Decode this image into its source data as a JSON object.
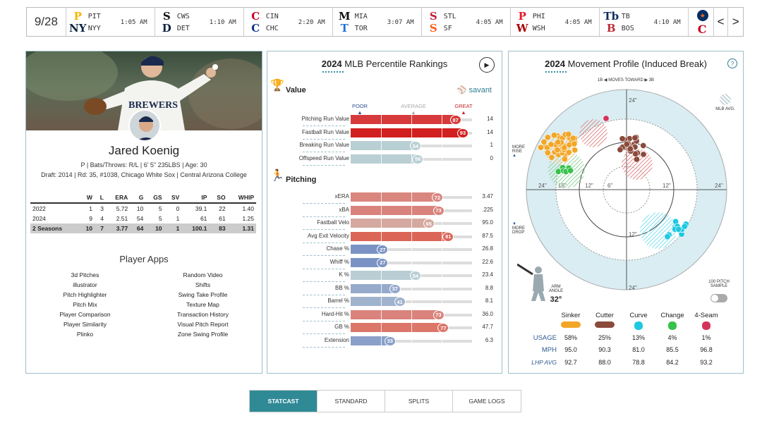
{
  "scorebar": {
    "date": "9/28",
    "games": [
      {
        "away": "PIT",
        "home": "NYY",
        "time": "1:05 AM",
        "away_logo": "P",
        "home_logo": "NY",
        "away_color": "#f5b400",
        "home_color": "#0c2340"
      },
      {
        "away": "CWS",
        "home": "DET",
        "time": "1:10 AM",
        "away_logo": "S",
        "home_logo": "D",
        "away_color": "#111111",
        "home_color": "#0c2340"
      },
      {
        "away": "CIN",
        "home": "CHC",
        "time": "2:20 AM",
        "away_logo": "C",
        "home_logo": "C",
        "away_color": "#c6011f",
        "home_color": "#0e3386"
      },
      {
        "away": "MIA",
        "home": "TOR",
        "time": "3:07 AM",
        "away_logo": "M",
        "home_logo": "T",
        "away_color": "#111111",
        "home_color": "#1d6fd8"
      },
      {
        "away": "STL",
        "home": "SF",
        "time": "4:05 AM",
        "away_logo": "S",
        "home_logo": "S",
        "away_color": "#c41e3a",
        "home_color": "#fd5a1e"
      },
      {
        "away": "PHI",
        "home": "WSH",
        "time": "4:05 AM",
        "away_logo": "P",
        "home_logo": "W",
        "away_color": "#e81828",
        "home_color": "#ab0003"
      },
      {
        "away": "TB",
        "home": "BOS",
        "time": "4:10 AM",
        "away_logo": "Tb",
        "home_logo": "B",
        "away_color": "#092c5c",
        "home_color": "#bd3039"
      }
    ],
    "last_logo": "C",
    "prev_label": "<",
    "next_label": ">"
  },
  "player": {
    "name": "Jared Koenig",
    "info1": "P | Bats/Throws: R/L | 6' 5\" 235LBS | Age: 30",
    "info2": "Draft: 2014 | Rd: 35, #1038, Chicago White Sox | Central Arizona College",
    "jersey": "BREWERS",
    "stats_headers": [
      "",
      "W",
      "L",
      "ERA",
      "G",
      "GS",
      "SV",
      "IP",
      "SO",
      "WHIP"
    ],
    "stats_rows": [
      [
        "2022",
        "1",
        "3",
        "5.72",
        "10",
        "5",
        "0",
        "39.1",
        "22",
        "1.40"
      ],
      [
        "2024",
        "9",
        "4",
        "2.51",
        "54",
        "5",
        "1",
        "61",
        "61",
        "1.25"
      ],
      [
        "2 Seasons",
        "10",
        "7",
        "3.77",
        "64",
        "10",
        "1",
        "100.1",
        "83",
        "1.31"
      ]
    ],
    "apps_title": "Player Apps",
    "apps_left": [
      "3d Pitches",
      "illustrator",
      "Pitch Highlighter",
      "Pitch Mix",
      "Player Comparison",
      "Player Similarity",
      "Plinko"
    ],
    "apps_right": [
      "Random Video",
      "Shifts",
      "Swing Take Profile",
      "Texture Map",
      "Transaction History",
      "Visual Pitch Report",
      "Zone Swing Profile"
    ]
  },
  "percentile": {
    "year": "2024",
    "title": "MLB Percentile Rankings",
    "value_title": "Value",
    "savant": "savant",
    "poor": "POOR",
    "average": "AVERAGE",
    "great": "GREAT",
    "pitching_title": "Pitching",
    "value_rows": [
      {
        "label": "Pitching Run Value",
        "pct": 87,
        "val": "14",
        "color": "#d63a3a"
      },
      {
        "label": "Fastball Run Value",
        "pct": 93,
        "val": "14",
        "color": "#d21f1f"
      },
      {
        "label": "Breaking Run Value",
        "pct": 54,
        "val": "1",
        "color": "#b8cfd4"
      },
      {
        "label": "Offspeed Run Value",
        "pct": 56,
        "val": "0",
        "color": "#b9cfd3"
      }
    ],
    "pitch_rows": [
      {
        "label": "xERA",
        "pct": 72,
        "val": "3.47",
        "color": "#d9867f"
      },
      {
        "label": "xBA",
        "pct": 73,
        "val": ".225",
        "color": "#d9837c"
      },
      {
        "label": "Fastball Velo",
        "pct": 65,
        "val": "95.0",
        "color": "#d5a9a0"
      },
      {
        "label": "Avg Exit Velocity",
        "pct": 81,
        "val": "87.5",
        "color": "#db6557"
      },
      {
        "label": "Chase %",
        "pct": 27,
        "val": "26.8",
        "color": "#7b93c4"
      },
      {
        "label": "Whiff %",
        "pct": 27,
        "val": "22.6",
        "color": "#7b93c4"
      },
      {
        "label": "K %",
        "pct": 54,
        "val": "23.4",
        "color": "#b8ced4"
      },
      {
        "label": "BB %",
        "pct": 37,
        "val": "8.8",
        "color": "#96aacb"
      },
      {
        "label": "Barrel %",
        "pct": 41,
        "val": "8.1",
        "color": "#a0b3cd"
      },
      {
        "label": "Hard-Hit %",
        "pct": 73,
        "val": "36.0",
        "color": "#d9837c"
      },
      {
        "label": "GB %",
        "pct": 77,
        "val": "47.7",
        "color": "#db7669"
      },
      {
        "label": "Extension",
        "pct": 33,
        "val": "6.3",
        "color": "#8aa0c8"
      }
    ]
  },
  "movement": {
    "year": "2024",
    "title": "Movement Profile (Induced Break)",
    "help": "?",
    "toward": "1B ◀  MOVES TOWARD  ▶ 3B",
    "mlb_avg": "MLB AVG.",
    "more_rise": "MORE RISE",
    "more_drop": "MORE DROP",
    "ticks": [
      "24\"",
      "18\"",
      "12\"",
      "6\"",
      "12\"",
      "24\"",
      "24\"",
      "12\"",
      "12\"",
      "24\""
    ],
    "arm_angle_label": "ARM ANGLE",
    "arm_angle": "32°",
    "sample": "100 PITCH SAMPLE",
    "pitches": [
      {
        "name": "Sinker",
        "color": "#f2a627",
        "usage": "58%",
        "mph": "95.0",
        "lhp": "92.7"
      },
      {
        "name": "Cutter",
        "color": "#8a4a3c",
        "usage": "25%",
        "mph": "90.3",
        "lhp": "88.0"
      },
      {
        "name": "Curve",
        "color": "#1ec8e0",
        "usage": "13%",
        "mph": "81.0",
        "lhp": "78.8"
      },
      {
        "name": "Change",
        "color": "#37c24a",
        "usage": "4%",
        "mph": "85.5",
        "lhp": "84.2"
      },
      {
        "name": "4-Seam",
        "color": "#d6335a",
        "usage": "1%",
        "mph": "96.8",
        "lhp": "93.2"
      }
    ],
    "row_usage": "USAGE",
    "row_mph": "MPH",
    "row_lhp": "LHP AVG"
  },
  "tabs": [
    "STATCAST",
    "STANDARD",
    "SPLITS",
    "GAME LOGS"
  ]
}
